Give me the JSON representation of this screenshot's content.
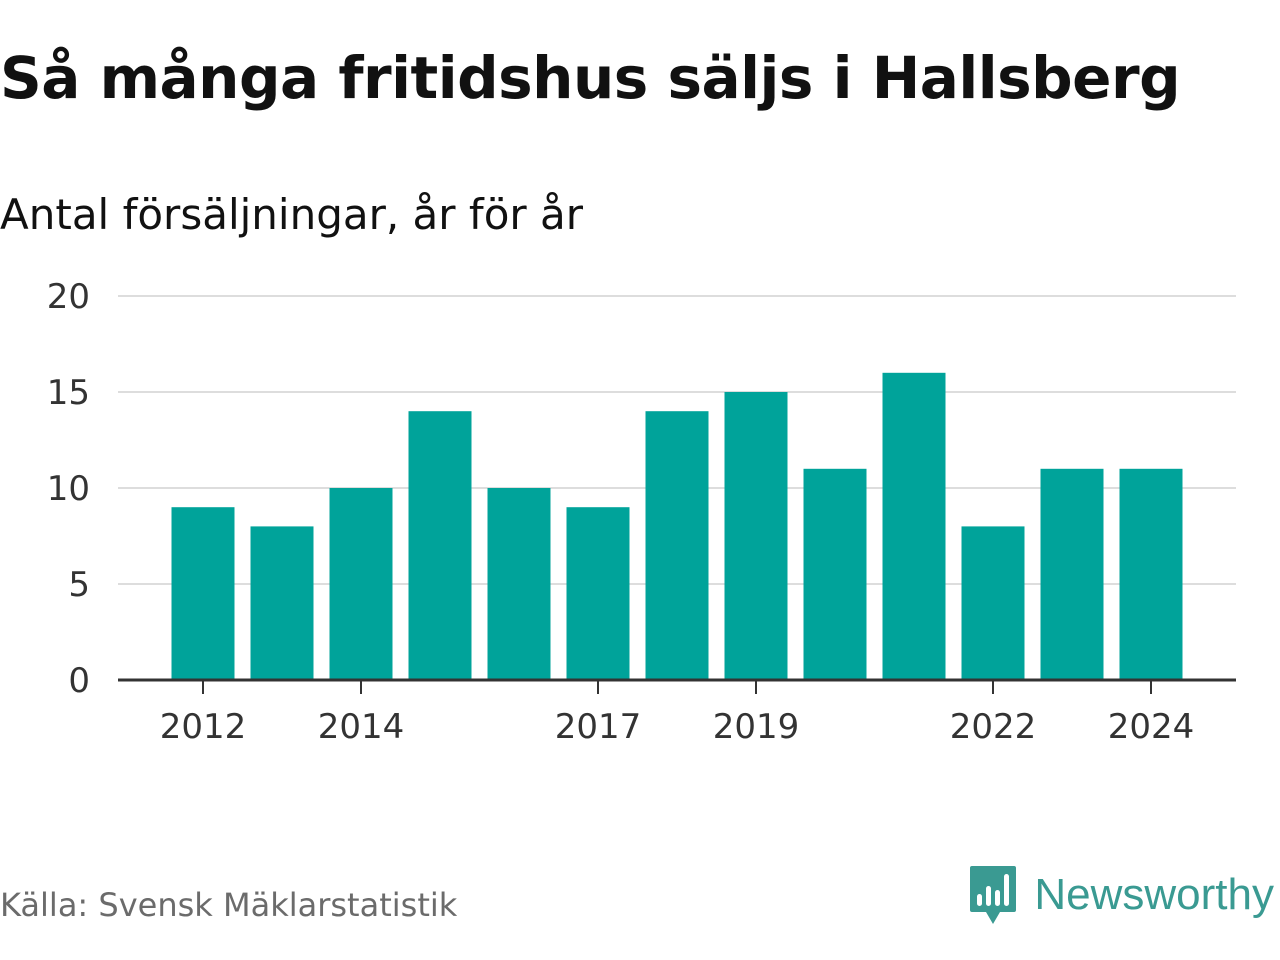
{
  "title": "Så många fritidshus säljs i Hallsberg",
  "subtitle": "Antal försäljningar, år för år",
  "source": "Källa: Svensk Mäklarstatistik",
  "brand": {
    "name": "Newsworthy",
    "logo_icon": "newsworthy-bar-chart-bubble-icon",
    "color": "#3a9a92"
  },
  "colors": {
    "bar": "#00a39a",
    "grid": "#dddddd",
    "axis": "#333333"
  },
  "chart_data": {
    "type": "bar",
    "categories": [
      "2012",
      "2013",
      "2014",
      "2015",
      "2016",
      "2017",
      "2018",
      "2019",
      "2020",
      "2021",
      "2022",
      "2023",
      "2024"
    ],
    "values": [
      9,
      8,
      10,
      14,
      10,
      9,
      14,
      15,
      11,
      16,
      8,
      11,
      11
    ],
    "x_tick_labels": [
      "2012",
      "2014",
      "2017",
      "2019",
      "2022",
      "2024"
    ],
    "y_ticks": [
      "0",
      "5",
      "10",
      "15",
      "20"
    ],
    "ylim": [
      0,
      20
    ],
    "grid": true,
    "title": "Så många fritidshus säljs i Hallsberg",
    "subtitle": "Antal försäljningar, år för år",
    "xlabel": "",
    "ylabel": ""
  }
}
